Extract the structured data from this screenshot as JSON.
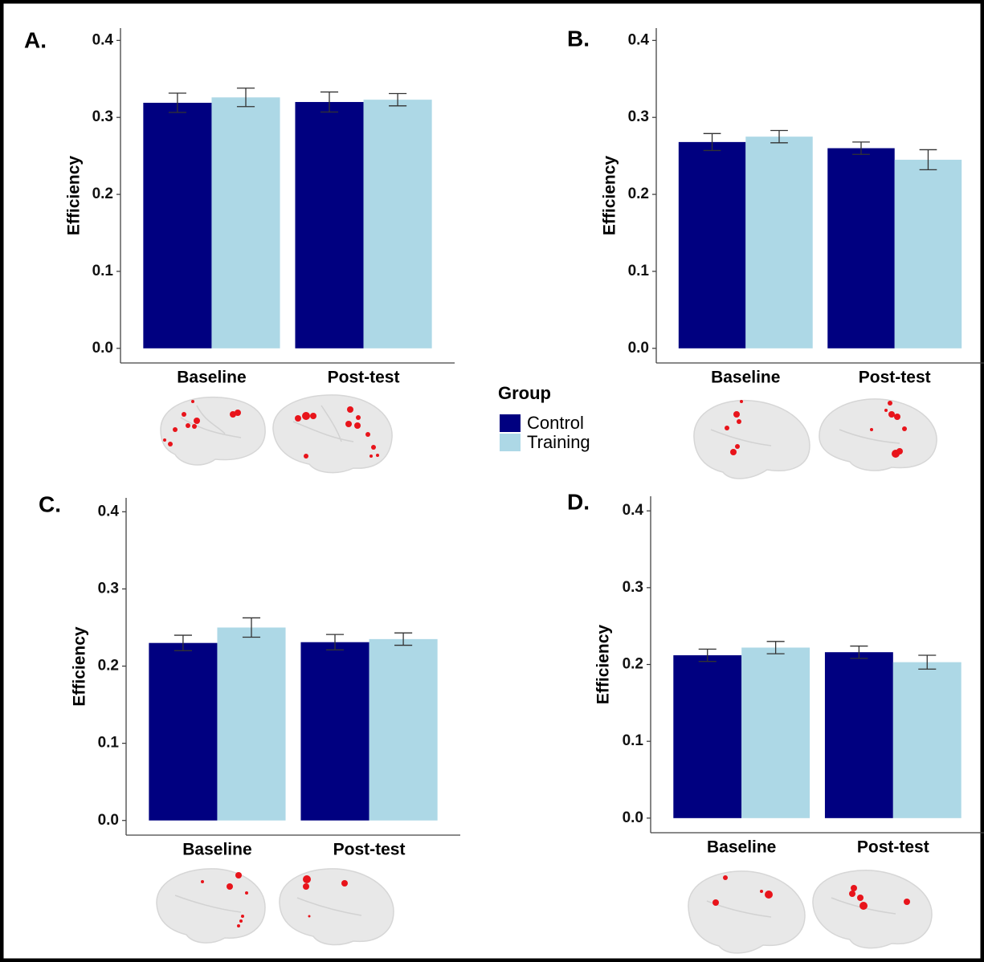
{
  "chart_data": [
    {
      "type": "bar",
      "panel_label": "A.",
      "y_label": "Efficiency",
      "categories": [
        "Baseline",
        "Post-test"
      ],
      "series": [
        {
          "name": "Control",
          "color": "#000080",
          "values": [
            0.319,
            0.32
          ],
          "errors": [
            0.0125,
            0.013
          ]
        },
        {
          "name": "Training",
          "color": "#add8e6",
          "values": [
            0.326,
            0.323
          ],
          "errors": [
            0.012,
            0.008
          ]
        }
      ],
      "ylim": [
        -0.019,
        0.416
      ],
      "yticks": [
        {
          "value": 0,
          "label": "0.0"
        },
        {
          "value": 0.1,
          "label": "0.1"
        },
        {
          "value": 0.2,
          "label": "0.2"
        },
        {
          "value": 0.3,
          "label": "0.3"
        },
        {
          "value": 0.4,
          "label": "0.4"
        }
      ]
    },
    {
      "type": "bar",
      "panel_label": "B.",
      "y_label": "Efficiency",
      "categories": [
        "Baseline",
        "Post-test"
      ],
      "series": [
        {
          "name": "Control",
          "color": "#000080",
          "values": [
            0.268,
            0.26
          ],
          "errors": [
            0.011,
            0.008
          ]
        },
        {
          "name": "Training",
          "color": "#add8e6",
          "values": [
            0.275,
            0.245
          ],
          "errors": [
            0.008,
            0.013
          ]
        }
      ],
      "ylim": [
        -0.019,
        0.416
      ],
      "yticks": [
        {
          "value": 0,
          "label": "0.0"
        },
        {
          "value": 0.1,
          "label": "0.1"
        },
        {
          "value": 0.2,
          "label": "0.2"
        },
        {
          "value": 0.3,
          "label": "0.3"
        },
        {
          "value": 0.4,
          "label": "0.4"
        }
      ]
    },
    {
      "type": "bar",
      "panel_label": "C.",
      "y_label": "Efficiency",
      "categories": [
        "Baseline",
        "Post-test"
      ],
      "series": [
        {
          "name": "Control",
          "color": "#000080",
          "values": [
            0.23,
            0.231
          ],
          "errors": [
            0.01,
            0.01
          ]
        },
        {
          "name": "Training",
          "color": "#add8e6",
          "values": [
            0.25,
            0.235
          ],
          "errors": [
            0.0125,
            0.008
          ]
        }
      ],
      "ylim": [
        -0.019,
        0.418
      ],
      "yticks": [
        {
          "value": 0,
          "label": "0.0"
        },
        {
          "value": 0.1,
          "label": "0.1"
        },
        {
          "value": 0.2,
          "label": "0.2"
        },
        {
          "value": 0.3,
          "label": "0.3"
        },
        {
          "value": 0.4,
          "label": "0.4"
        }
      ]
    },
    {
      "type": "bar",
      "panel_label": "D.",
      "y_label": "Efficiency",
      "categories": [
        "Baseline",
        "Post-test"
      ],
      "series": [
        {
          "name": "Control",
          "color": "#000080",
          "values": [
            0.212,
            0.216
          ],
          "errors": [
            0.008,
            0.008
          ]
        },
        {
          "name": "Training",
          "color": "#add8e6",
          "values": [
            0.222,
            0.203
          ],
          "errors": [
            0.008,
            0.009
          ]
        }
      ],
      "ylim": [
        -0.019,
        0.419
      ],
      "yticks": [
        {
          "value": 0,
          "label": "0.0"
        },
        {
          "value": 0.1,
          "label": "0.1"
        },
        {
          "value": 0.2,
          "label": "0.2"
        },
        {
          "value": 0.3,
          "label": "0.3"
        },
        {
          "value": 0.4,
          "label": "0.4"
        }
      ]
    }
  ],
  "legend": {
    "title": "Group"
  }
}
